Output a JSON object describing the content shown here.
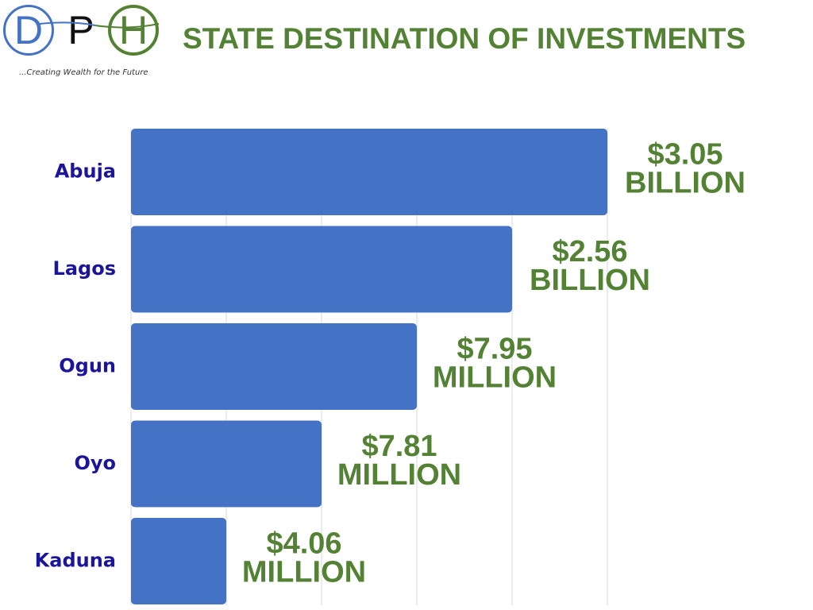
{
  "logo": {
    "letters": [
      "D",
      "P",
      "H"
    ],
    "tagline": "...Creating Wealth for the Future"
  },
  "title": "STATE DESTINATION OF INVESTMENTS",
  "colors": {
    "bar": "#4472c4",
    "title": "#548235",
    "value_labels": "#548235",
    "category_labels": "#1b1599",
    "grid": "#d9d9d9"
  },
  "chart_data": {
    "type": "bar",
    "orientation": "horizontal",
    "title": "STATE DESTINATION OF INVESTMENTS",
    "categories": [
      "Abuja",
      "Lagos",
      "Ogun",
      "Oyo",
      "Kaduna"
    ],
    "values": [
      5,
      4,
      3,
      2,
      1
    ],
    "data_labels": [
      [
        "$3.05",
        "BILLION"
      ],
      [
        "$2.56",
        "BILLION"
      ],
      [
        "$7.95",
        "MILLION"
      ],
      [
        "$7.81",
        "MILLION"
      ],
      [
        "$4.06",
        "MILLION"
      ]
    ],
    "xlim": [
      0,
      5
    ],
    "grid": true,
    "legend": "none"
  }
}
